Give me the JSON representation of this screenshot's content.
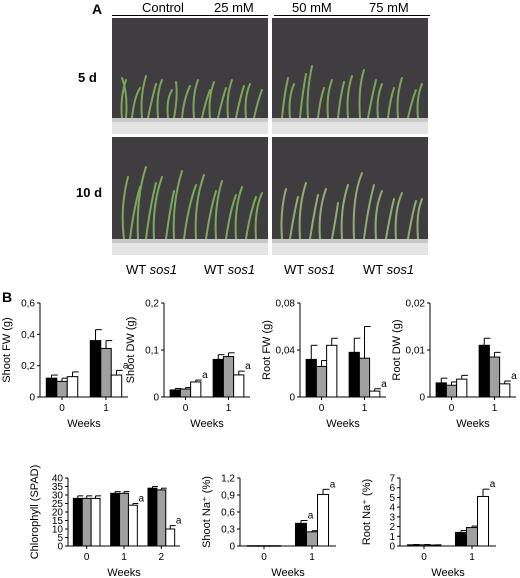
{
  "panel_a": {
    "label": "A",
    "treatments": [
      "Control",
      "25 mM",
      "50 mM",
      "75 mM"
    ],
    "rows": [
      "5 d",
      "10 d"
    ],
    "genotypes": [
      {
        "wt": "WT",
        "mut": "sos1"
      },
      {
        "wt": "WT",
        "mut": "sos1"
      },
      {
        "wt": "WT",
        "mut": "sos1"
      },
      {
        "wt": "WT",
        "mut": "sos1"
      }
    ]
  },
  "panel_b": {
    "label": "B"
  },
  "colors": {
    "bar1": "#000000",
    "bar2": "#a0a0a0",
    "bar3": "#ffffff"
  },
  "chart_data": [
    {
      "type": "bar",
      "ylabel": "Shoot FW (g)",
      "xlabel": "Weeks",
      "categories": [
        "0",
        "1"
      ],
      "yticks": [
        "0",
        "0,2",
        "0,4",
        "0,6"
      ],
      "ylim": [
        0,
        0.6
      ],
      "series": [
        {
          "values": [
            0.12,
            0.36
          ],
          "errors": [
            0.02,
            0.07
          ]
        },
        {
          "values": [
            0.1,
            0.31
          ],
          "errors": [
            0.02,
            0.05
          ]
        },
        {
          "values": [
            0.13,
            0.14
          ],
          "errors": [
            0.03,
            0.03
          ]
        }
      ],
      "annotations": [
        {
          "category": "1",
          "series": 3,
          "text": "a"
        }
      ]
    },
    {
      "type": "bar",
      "ylabel": "Shoot DW (g)",
      "xlabel": "Weeks",
      "categories": [
        "0",
        "1"
      ],
      "yticks": [
        "0",
        "0,1",
        "0,2"
      ],
      "ylim": [
        0,
        0.2
      ],
      "series": [
        {
          "values": [
            0.015,
            0.08
          ],
          "errors": [
            0.003,
            0.01
          ]
        },
        {
          "values": [
            0.017,
            0.086
          ],
          "errors": [
            0.003,
            0.008
          ]
        },
        {
          "values": [
            0.032,
            0.047
          ],
          "errors": [
            0.004,
            0.008
          ]
        }
      ],
      "annotations": [
        {
          "category": "0",
          "series": 3,
          "text": "a"
        },
        {
          "category": "1",
          "series": 3,
          "text": "a"
        }
      ]
    },
    {
      "type": "bar",
      "ylabel": "Root FW (g)",
      "xlabel": "Weeks",
      "categories": [
        "0",
        "1"
      ],
      "yticks": [
        "0",
        "0,04",
        "0,08"
      ],
      "ylim": [
        0,
        0.08
      ],
      "series": [
        {
          "values": [
            0.032,
            0.038
          ],
          "errors": [
            0.012,
            0.012
          ]
        },
        {
          "values": [
            0.026,
            0.033
          ],
          "errors": [
            0.005,
            0.027
          ]
        },
        {
          "values": [
            0.044,
            0.005
          ],
          "errors": [
            0.006,
            0.002
          ]
        }
      ],
      "annotations": [
        {
          "category": "1",
          "series": 3,
          "text": "a"
        }
      ]
    },
    {
      "type": "bar",
      "ylabel": "Root DW (g)",
      "xlabel": "Weeks",
      "categories": [
        "0",
        "1"
      ],
      "yticks": [
        "0",
        "0,01",
        "0,02"
      ],
      "ylim": [
        0,
        0.02
      ],
      "series": [
        {
          "values": [
            0.003,
            0.011
          ],
          "errors": [
            0.001,
            0.0015
          ]
        },
        {
          "values": [
            0.0025,
            0.0085
          ],
          "errors": [
            0.0007,
            0.001
          ]
        },
        {
          "values": [
            0.0038,
            0.0028
          ],
          "errors": [
            0.0008,
            0.0006
          ]
        }
      ],
      "annotations": [
        {
          "category": "1",
          "series": 3,
          "text": "a"
        }
      ]
    },
    {
      "type": "bar",
      "ylabel": "Chlorophyll (SPAD)",
      "xlabel": "Weeks",
      "categories": [
        "0",
        "1",
        "2"
      ],
      "yticks": [
        "0",
        "5",
        "10",
        "15",
        "20",
        "25",
        "30",
        "35",
        "40"
      ],
      "ylim": [
        0,
        40
      ],
      "series": [
        {
          "values": [
            28,
            31,
            34
          ],
          "errors": [
            1.5,
            1,
            1
          ]
        },
        {
          "values": [
            28,
            31,
            33
          ],
          "errors": [
            1.5,
            1,
            1
          ]
        },
        {
          "values": [
            28,
            24,
            10
          ],
          "errors": [
            1.5,
            1,
            2
          ]
        }
      ],
      "annotations": [
        {
          "category": "1",
          "series": 3,
          "text": "a"
        },
        {
          "category": "2",
          "series": 3,
          "text": "a"
        }
      ]
    },
    {
      "type": "bar",
      "ylabel": "Shoot Na⁺ (%)",
      "xlabel": "Weeks",
      "categories": [
        "0",
        "1"
      ],
      "yticks": [
        "0",
        "0,3",
        "0,6",
        "0,9",
        "1,2"
      ],
      "ylim": [
        0,
        1.2
      ],
      "series": [
        {
          "values": [
            0.005,
            0.4
          ],
          "errors": [
            0,
            0.05
          ]
        },
        {
          "values": [
            0.005,
            0.25
          ],
          "errors": [
            0,
            0.02
          ]
        },
        {
          "values": [
            0.005,
            0.91
          ],
          "errors": [
            0,
            0.09
          ]
        }
      ],
      "annotations": [
        {
          "category": "1",
          "series": 1,
          "text": "a"
        },
        {
          "category": "1",
          "series": 3,
          "text": "a"
        }
      ]
    },
    {
      "type": "bar",
      "ylabel": "Root Na⁺ (%)",
      "xlabel": "Weeks",
      "categories": [
        "0",
        "1"
      ],
      "yticks": [
        "0",
        "1",
        "2",
        "3",
        "4",
        "5",
        "6",
        "7"
      ],
      "ylim": [
        0,
        7
      ],
      "series": [
        {
          "values": [
            0.12,
            1.4
          ],
          "errors": [
            0.03,
            0.2
          ]
        },
        {
          "values": [
            0.12,
            1.9
          ],
          "errors": [
            0.03,
            0.15
          ]
        },
        {
          "values": [
            0.1,
            5.1
          ],
          "errors": [
            0.02,
            0.75
          ]
        }
      ],
      "annotations": [
        {
          "category": "1",
          "series": 3,
          "text": "a"
        }
      ]
    }
  ]
}
